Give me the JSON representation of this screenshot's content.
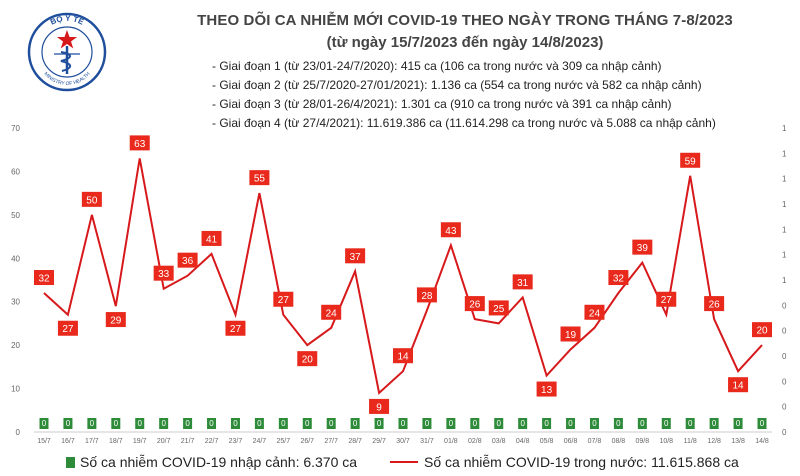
{
  "header": {
    "title": "THEO DÕI CA NHIỄM MỚI COVID-19 THEO NGÀY TRONG THÁNG 7-8/2023",
    "subtitle": "(từ ngày 15/7/2023 đến ngày 14/8/2023)",
    "logo_text": "BỘ Y TẾ",
    "logo_ring_text": "MINISTRY OF HEALTH"
  },
  "phases": [
    "- Giai đoạn 1 (từ 23/01-24/7/2020): 415 ca (106 ca trong nước và 309 ca nhập cảnh)",
    "- Giai đoạn 2 (từ 25/7/2020-27/01/2021): 1.136 ca (554 ca trong nước và 582 ca nhập cảnh)",
    "- Giai đoạn 3 (từ 28/01-26/4/2021): 1.301 ca (910 ca trong nước và 391 ca nhập cảnh)",
    "- Giai đoạn 4 (từ 27/4/2021): 11.619.386 ca (11.614.298 ca trong nước và 5.088 ca nhập cảnh)"
  ],
  "legend": {
    "imported": "Số ca nhiễm COVID-19 nhập cảnh: 6.370 ca",
    "domestic": "Số ca nhiễm COVID-19 trong nước: 11.615.868 ca"
  },
  "colors": {
    "line": "#d7191c",
    "label_box": "#e8291c",
    "bar": "#2e8b3a",
    "axis_text": "#666666"
  },
  "chart_data": {
    "type": "line",
    "categories": [
      "15/7",
      "16/7",
      "17/7",
      "18/7",
      "19/7",
      "20/7",
      "21/7",
      "22/7",
      "23/7",
      "24/7",
      "25/7",
      "26/7",
      "27/7",
      "28/7",
      "29/7",
      "30/7",
      "31/7",
      "01/8",
      "02/8",
      "03/8",
      "04/8",
      "05/8",
      "06/8",
      "07/8",
      "08/8",
      "09/8",
      "10/8",
      "11/8",
      "12/8",
      "13/8",
      "14/8"
    ],
    "series": [
      {
        "name": "Số ca nhiễm COVID-19 trong nước: 11.615.868 ca",
        "axis": "left",
        "values": [
          32,
          27,
          50,
          29,
          63,
          33,
          36,
          41,
          27,
          55,
          27,
          20,
          24,
          37,
          9,
          14,
          28,
          43,
          26,
          25,
          31,
          13,
          19,
          24,
          32,
          39,
          27,
          59,
          26,
          14,
          20
        ]
      },
      {
        "name": "Số ca nhiễm COVID-19 nhập cảnh: 6.370 ca",
        "axis": "right",
        "type": "bar",
        "values": [
          0,
          0,
          0,
          0,
          0,
          0,
          0,
          0,
          0,
          0,
          0,
          0,
          0,
          0,
          0,
          0,
          0,
          0,
          0,
          0,
          0,
          0,
          0,
          0,
          0,
          0,
          0,
          0,
          0,
          0,
          0
        ],
        "bar_labels": [
          "0",
          "0",
          "0",
          "0",
          "0",
          "0",
          "0",
          "0",
          "0",
          "0",
          "0",
          "0",
          "0",
          "0",
          "0",
          "0",
          "0",
          "0",
          "0",
          "0",
          "0",
          "0",
          "0",
          "0",
          "0",
          "0",
          "0",
          "0",
          "0",
          "0",
          "0"
        ]
      }
    ],
    "yticks_left": [
      "0",
      "10",
      "20",
      "30",
      "40",
      "50",
      "60",
      "70"
    ],
    "ylim": [
      0,
      70
    ],
    "yticks_right": [
      "0",
      "0",
      "0",
      "0",
      "0",
      "0",
      "1",
      "1",
      "1",
      "1",
      "1",
      "1",
      "1"
    ],
    "grid": false,
    "legend_position": "bottom"
  }
}
